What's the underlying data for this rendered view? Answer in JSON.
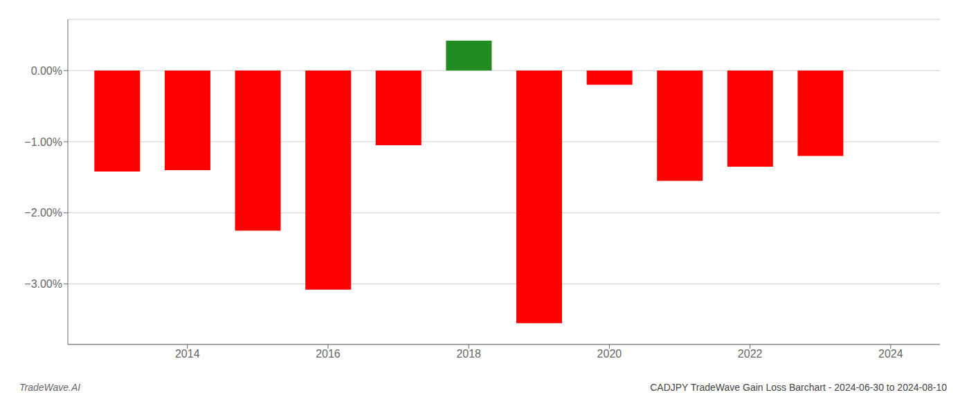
{
  "chart_data": {
    "type": "bar",
    "title": "CADJPY TradeWave Gain Loss Barchart - 2024-06-30 to 2024-08-10",
    "annotations": [
      "TradeWave.AI"
    ],
    "x": [
      2013,
      2014,
      2015,
      2016,
      2017,
      2018,
      2019,
      2020,
      2021,
      2022,
      2023
    ],
    "values": [
      -1.42,
      -1.4,
      -2.25,
      -3.08,
      -1.05,
      0.42,
      -3.55,
      -0.2,
      -1.55,
      -1.35,
      -1.2
    ],
    "colors": [
      "#ff0000",
      "#ff0000",
      "#ff0000",
      "#ff0000",
      "#ff0000",
      "#228B22",
      "#ff0000",
      "#ff0000",
      "#ff0000",
      "#ff0000",
      "#ff0000"
    ],
    "xlim": [
      2012.3,
      2024.7
    ],
    "xticks": [
      2014,
      2016,
      2018,
      2020,
      2022,
      2024
    ],
    "ylim": [
      -3.85,
      0.72
    ],
    "yticks": [
      {
        "value": 0.0,
        "label": "0.00%"
      },
      {
        "value": -1.0,
        "label": "−1.00%"
      },
      {
        "value": -2.0,
        "label": "−2.00%"
      },
      {
        "value": -3.0,
        "label": "−3.00%"
      }
    ],
    "grid": "y"
  }
}
